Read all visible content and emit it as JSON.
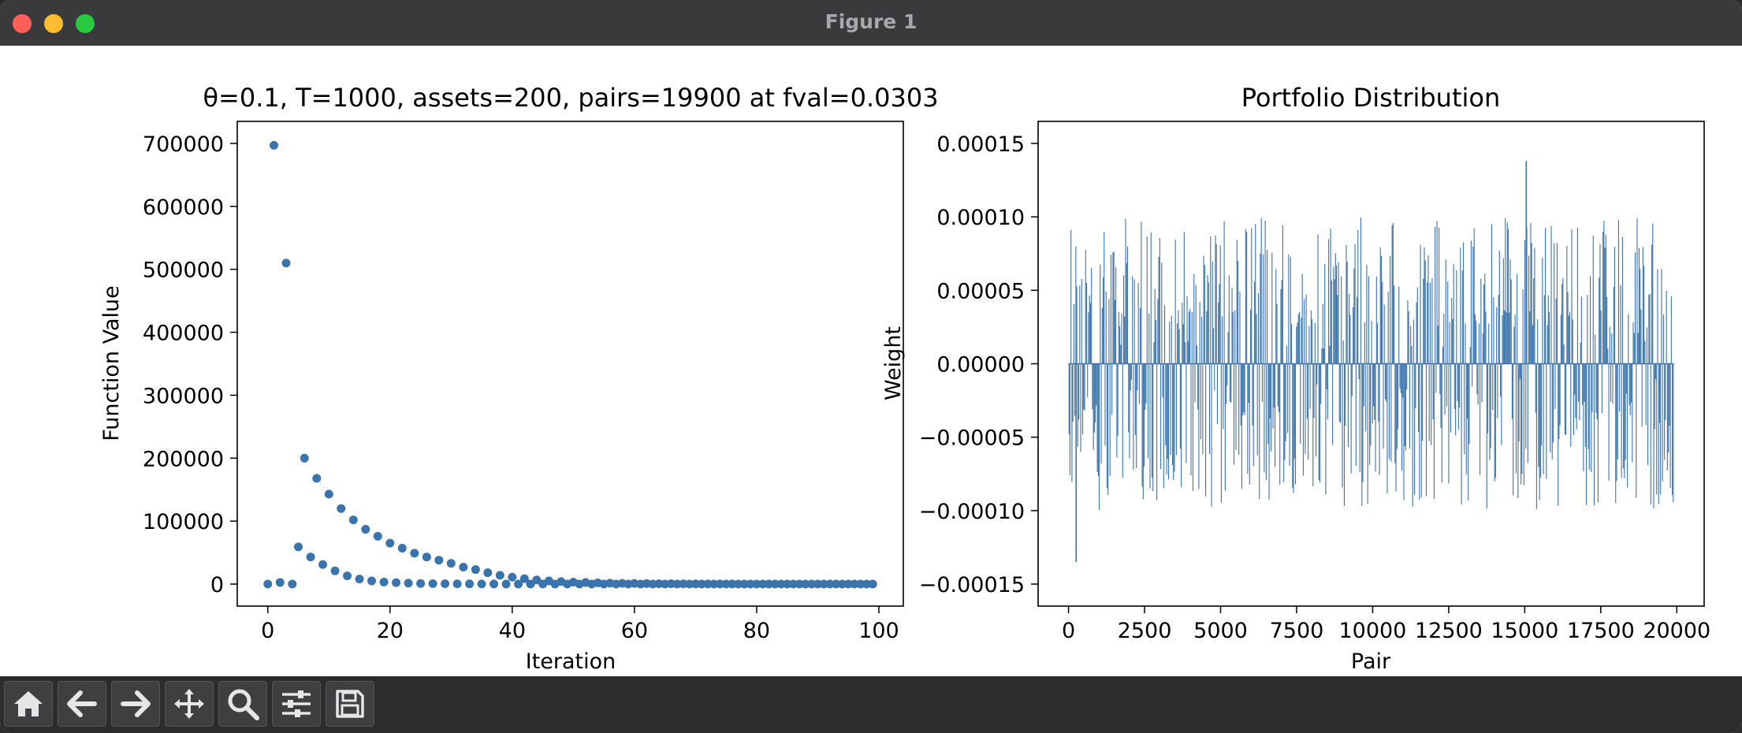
{
  "window": {
    "title": "Figure 1"
  },
  "toolbar": {
    "buttons": [
      {
        "name": "home-button",
        "icon": "home-icon"
      },
      {
        "name": "back-button",
        "icon": "arrow-left-icon"
      },
      {
        "name": "forward-button",
        "icon": "arrow-right-icon"
      },
      {
        "name": "pan-button",
        "icon": "move-icon"
      },
      {
        "name": "zoom-button",
        "icon": "magnifier-icon"
      },
      {
        "name": "configure-subplots-button",
        "icon": "sliders-icon"
      },
      {
        "name": "save-button",
        "icon": "floppy-disk-icon"
      }
    ]
  },
  "colors": {
    "series": "#3a74ad",
    "axis": "#000000",
    "chrome": "#3a3a3c"
  },
  "chart_data": [
    {
      "type": "scatter",
      "title": "θ=0.1, T=1000, assets=200, pairs=19900 at fval=0.0303",
      "xlabel": "Iteration",
      "ylabel": "Function Value",
      "xlim": [
        -5,
        104
      ],
      "ylim": [
        -35000,
        735000
      ],
      "xticks": [
        0,
        20,
        40,
        60,
        80,
        100
      ],
      "xtick_labels": [
        "0",
        "20",
        "40",
        "60",
        "80",
        "100"
      ],
      "yticks": [
        0,
        100000,
        200000,
        300000,
        400000,
        500000,
        600000,
        700000
      ],
      "ytick_labels": [
        "0",
        "100000",
        "200000",
        "300000",
        "400000",
        "500000",
        "600000",
        "700000"
      ],
      "grid": false,
      "points": {
        "x": [
          0,
          1,
          2,
          3,
          4,
          5,
          6,
          7,
          8,
          9,
          10,
          11,
          12,
          13,
          14,
          15,
          16,
          17,
          18,
          19,
          20,
          21,
          22,
          23,
          24,
          25,
          26,
          27,
          28,
          29,
          30,
          31,
          32,
          33,
          34,
          35,
          36,
          37,
          38,
          39,
          40,
          41,
          42,
          43,
          44,
          45,
          46,
          47,
          48,
          49,
          50,
          51,
          52,
          53,
          54,
          55,
          56,
          57,
          58,
          59,
          60,
          61,
          62,
          63,
          64,
          65,
          66,
          67,
          68,
          69,
          70,
          71,
          72,
          73,
          74,
          75,
          76,
          77,
          78,
          79,
          80,
          81,
          82,
          83,
          84,
          85,
          86,
          87,
          88,
          89,
          90,
          91,
          92,
          93,
          94,
          95,
          96,
          97,
          98,
          99
        ],
        "y": [
          0,
          697000,
          2500,
          510000,
          0,
          59000,
          200000,
          43000,
          168000,
          31000,
          143000,
          21000,
          120000,
          13000,
          102000,
          8000,
          87000,
          5000,
          76000,
          3200,
          65000,
          2200,
          57000,
          1500,
          49000,
          1000,
          43000,
          700,
          38000,
          500,
          33000,
          400,
          27000,
          300,
          23000,
          200,
          18000,
          150,
          14000,
          100,
          11000,
          80,
          8500,
          60,
          6500,
          40,
          5000,
          30,
          4000,
          25,
          3000,
          20,
          2500,
          15,
          2000,
          12,
          1500,
          10,
          1200,
          8,
          1000,
          6,
          800,
          5,
          600,
          4,
          500,
          3,
          400,
          3,
          300,
          2,
          250,
          2,
          200,
          2,
          150,
          1,
          120,
          1,
          100,
          1,
          80,
          1,
          60,
          1,
          50,
          1,
          40,
          1,
          30,
          1,
          25,
          1,
          20,
          1,
          15,
          1,
          10,
          1
        ]
      }
    },
    {
      "type": "bar",
      "title": "Portfolio Distribution",
      "xlabel": "Pair",
      "ylabel": "Weight",
      "xlim": [
        -1000,
        20900
      ],
      "ylim": [
        -0.000165,
        0.000165
      ],
      "xticks": [
        0,
        2500,
        5000,
        7500,
        10000,
        12500,
        15000,
        17500,
        20000
      ],
      "xtick_labels": [
        "0",
        "2500",
        "5000",
        "7500",
        "10000",
        "12500",
        "15000",
        "17500",
        "20000"
      ],
      "yticks": [
        -0.00015,
        -0.0001,
        -5e-05,
        0,
        5e-05,
        0.0001,
        0.00015
      ],
      "ytick_labels": [
        "−0.00015",
        "−0.00010",
        "−0.00005",
        "0.00000",
        "0.00005",
        "0.00010",
        "0.00015"
      ],
      "grid": false,
      "n_pairs": 19900,
      "weight_range": [
        -0.000135,
        0.000138
      ],
      "notable_values": {
        "max": {
          "x": 15050,
          "value": 0.000138
        },
        "min": {
          "x": 250,
          "value": -0.000135
        }
      }
    }
  ]
}
